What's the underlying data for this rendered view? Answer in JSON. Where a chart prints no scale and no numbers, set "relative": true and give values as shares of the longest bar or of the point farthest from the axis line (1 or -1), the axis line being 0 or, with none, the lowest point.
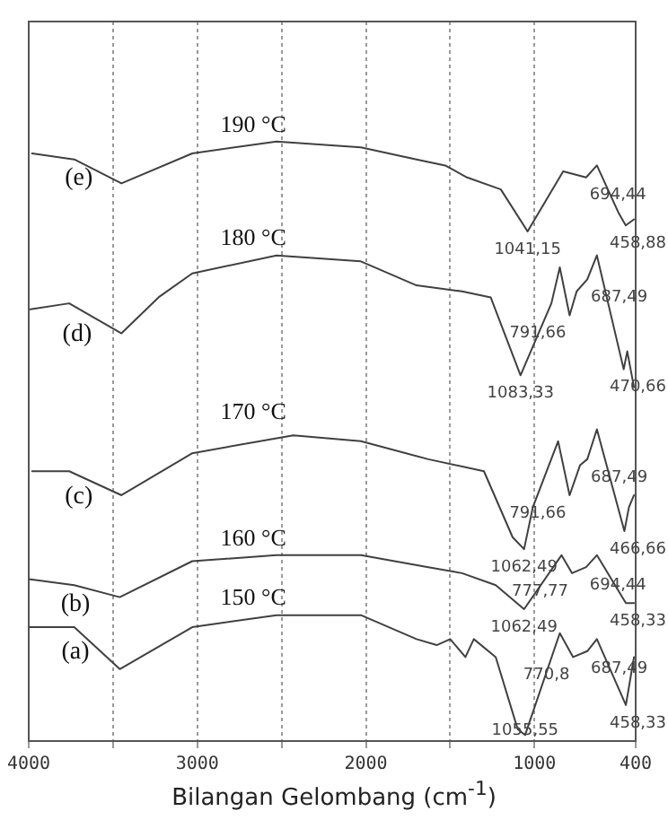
{
  "chart_data": {
    "type": "line",
    "relative": true,
    "xlabel": "Bilangan Gelombang (cm$^{-1}$)",
    "xlim": [
      4000,
      400
    ],
    "xticks": [
      4000,
      {
        "value": 3500,
        "label": null
      },
      3000,
      {
        "value": 2500,
        "label": null
      },
      2000,
      {
        "value": 1500,
        "label": null
      },
      1000,
      400
    ],
    "grid": "x",
    "legend": false,
    "marker": "none",
    "line_style": "solid",
    "series": [
      {
        "name": "(a)",
        "color": "#404040",
        "x": [
          4000,
          3730,
          3460,
          3030,
          2530,
          2030,
          1700,
          1580,
          1500,
          1410,
          1360,
          1230,
          1100,
          1056,
          850,
          771,
          687,
          630,
          458,
          410
        ],
        "values": [
          0.19,
          0.19,
          0.12,
          0.19,
          0.21,
          0.21,
          0.17,
          0.16,
          0.17,
          0.14,
          0.17,
          0.14,
          0.02,
          0.01,
          0.18,
          0.14,
          0.15,
          0.17,
          0.06,
          0.14
        ]
      },
      {
        "name": "(b)",
        "color": "#404040",
        "x": [
          4000,
          3730,
          3460,
          3030,
          2530,
          2360,
          2030,
          1630,
          1430,
          1230,
          1062,
          840,
          778,
          694,
          630,
          458,
          410
        ],
        "values": [
          0.27,
          0.26,
          0.24,
          0.3,
          0.31,
          0.31,
          0.31,
          0.29,
          0.28,
          0.26,
          0.22,
          0.31,
          0.28,
          0.29,
          0.31,
          0.23,
          0.23
        ]
      },
      {
        "name": "(c)",
        "color": "#404040",
        "x": [
          3980,
          3760,
          3450,
          3030,
          2430,
          2030,
          1630,
          1300,
          1130,
          1062,
          1010,
          860,
          792,
          730,
          687,
          630,
          467,
          440,
          410
        ],
        "values": [
          0.45,
          0.45,
          0.41,
          0.48,
          0.51,
          0.5,
          0.47,
          0.45,
          0.34,
          0.32,
          0.39,
          0.5,
          0.41,
          0.46,
          0.47,
          0.52,
          0.35,
          0.39,
          0.41
        ]
      },
      {
        "name": "(d)",
        "color": "#404040",
        "x": [
          3990,
          3760,
          3450,
          3230,
          3030,
          2530,
          2030,
          1700,
          1430,
          1260,
          1083,
          900,
          850,
          792,
          750,
          687,
          630,
          471,
          450,
          410
        ],
        "values": [
          0.72,
          0.73,
          0.68,
          0.74,
          0.78,
          0.81,
          0.8,
          0.76,
          0.75,
          0.74,
          0.61,
          0.73,
          0.79,
          0.71,
          0.75,
          0.77,
          0.81,
          0.62,
          0.65,
          0.59
        ]
      },
      {
        "name": "(e)",
        "color": "#404040",
        "x": [
          3980,
          3730,
          3450,
          3030,
          2530,
          2030,
          1700,
          1530,
          1400,
          1200,
          1041,
          830,
          694,
          630,
          500,
          459,
          410
        ],
        "values": [
          0.98,
          0.97,
          0.93,
          0.98,
          1.0,
          0.99,
          0.97,
          0.96,
          0.94,
          0.92,
          0.85,
          0.95,
          0.94,
          0.96,
          0.88,
          0.86,
          0.87
        ]
      }
    ],
    "annotations": [
      "190 °C",
      "180 °C",
      "170 °C",
      "160 °C",
      "150 °C",
      {
        "text": "1041,15",
        "x": 1041,
        "y": 0.85
      },
      {
        "text": "694,44",
        "x": 694,
        "y": 0.94
      },
      {
        "text": "458,88",
        "x": 459,
        "y": 0.86
      },
      {
        "text": "791,66",
        "x": 792,
        "y": 0.71
      },
      {
        "text": "687,49",
        "x": 687,
        "y": 0.77
      },
      {
        "text": "1083,33",
        "x": 1083,
        "y": 0.61
      },
      {
        "text": "470,66",
        "x": 471,
        "y": 0.62
      },
      {
        "text": "687,49",
        "x": 687,
        "y": 0.47
      },
      {
        "text": "791,66",
        "x": 792,
        "y": 0.41
      },
      {
        "text": "1062,49",
        "x": 1062,
        "y": 0.32
      },
      {
        "text": "466,66",
        "x": 467,
        "y": 0.35
      },
      {
        "text": "694,44",
        "x": 694,
        "y": 0.29
      },
      {
        "text": "777,77",
        "x": 778,
        "y": 0.28
      },
      {
        "text": "1062,49",
        "x": 1062,
        "y": 0.22
      },
      {
        "text": "458,33",
        "x": 458,
        "y": 0.23
      },
      {
        "text": "770,8",
        "x": 771,
        "y": 0.14
      },
      {
        "text": "687,49",
        "x": 687,
        "y": 0.15
      },
      {
        "text": "458,33",
        "x": 458,
        "y": 0.06
      },
      {
        "text": "1055,55",
        "x": 1056,
        "y": 0.01
      }
    ]
  }
}
